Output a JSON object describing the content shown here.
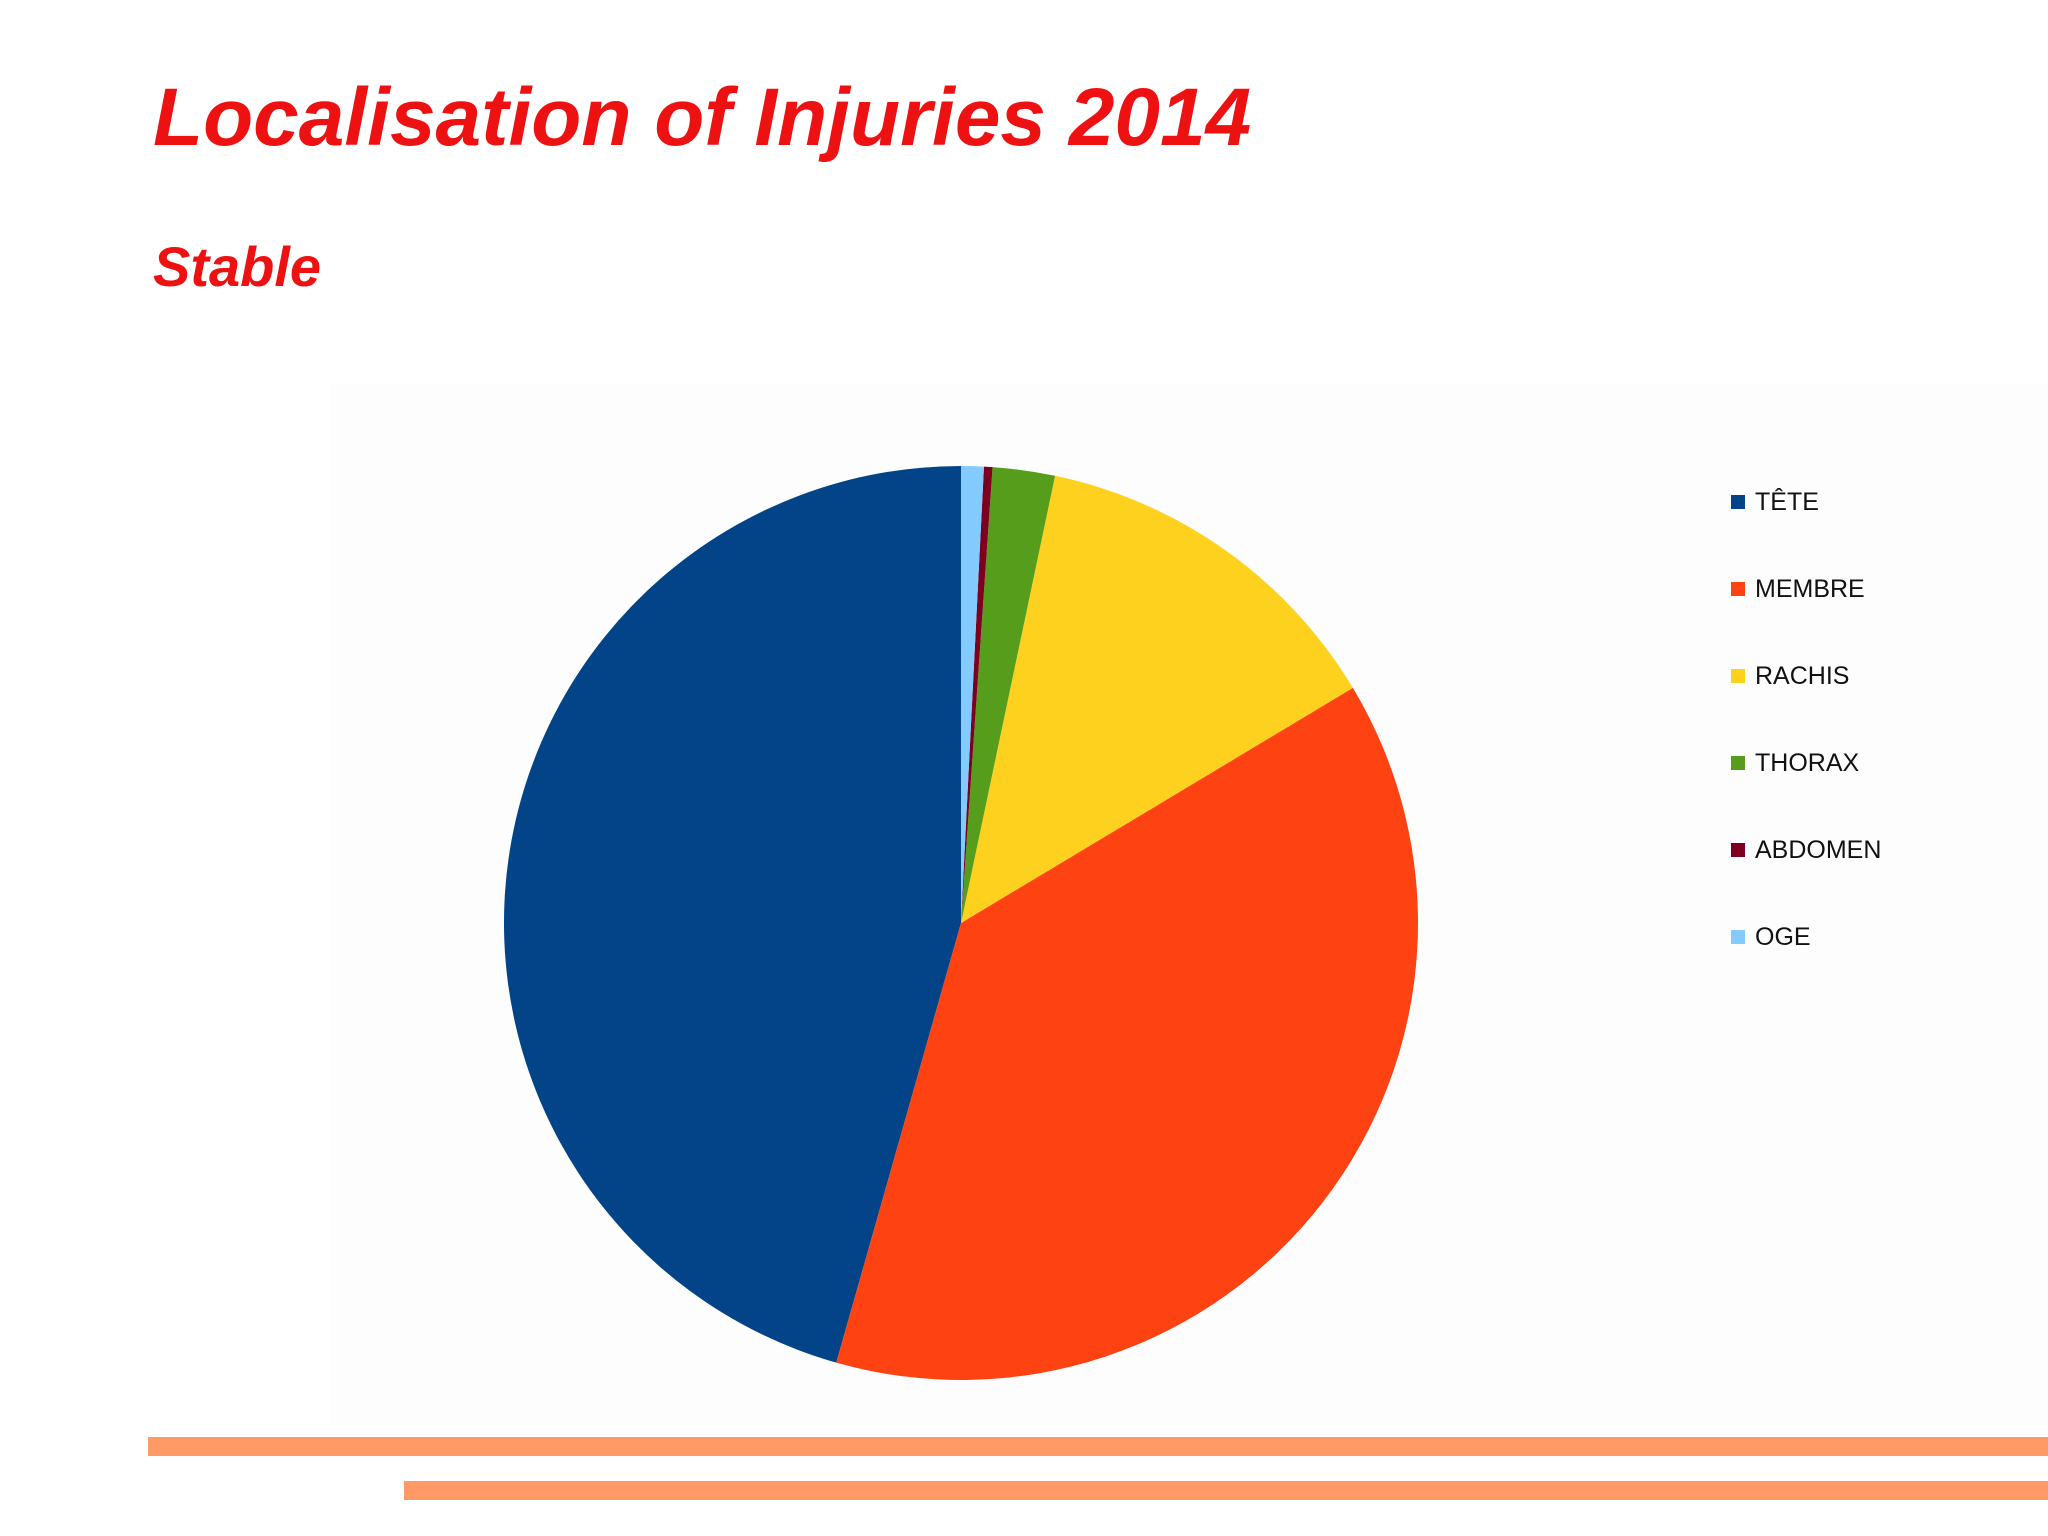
{
  "slide": {
    "title": "Localisation of Injuries 2014",
    "subtitle": "Stable"
  },
  "colors": {
    "title": "#ee1111",
    "decor_lines": "#ff9966"
  },
  "chart_data": {
    "type": "pie",
    "start_angle": "12 o'clock",
    "direction": "counter-clockwise",
    "slices": [
      {
        "label": "TÊTE",
        "value": 45.6,
        "color": "#034387"
      },
      {
        "label": "MEMBRE",
        "value": 38.0,
        "color": "#ff4211"
      },
      {
        "label": "RACHIS",
        "value": 13.1,
        "color": "#fed11f"
      },
      {
        "label": "THORAX",
        "value": 2.2,
        "color": "#579d1c"
      },
      {
        "label": "ABDOMEN",
        "value": 0.3,
        "color": "#7e0021"
      },
      {
        "label": "OGE",
        "value": 0.8,
        "color": "#83caff"
      }
    ],
    "legend_position": "right"
  }
}
